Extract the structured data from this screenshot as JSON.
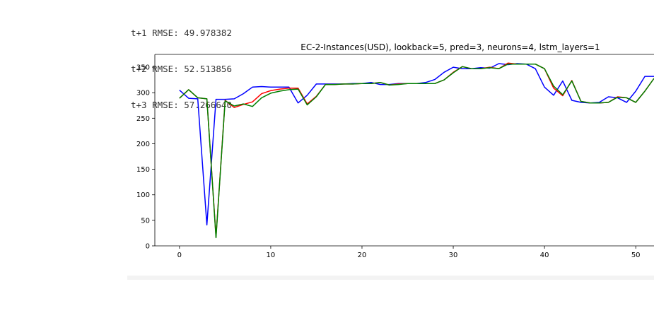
{
  "output_lines": [
    "t+1 RMSE: 49.978382",
    "t+2 RMSE: 52.513856",
    "t+3 RMSE: 57.266640"
  ],
  "colors": {
    "series_1": "#0000ff",
    "series_2": "#ff0000",
    "series_3": "#008000",
    "axis": "#000000"
  },
  "chart_data": {
    "type": "line",
    "title": "EC-2-Instances(USD), lookback=5, pred=3, neurons=4, lstm_layers=1",
    "xlabel": "",
    "ylabel": "",
    "xlim": [
      -2.7,
      52
    ],
    "ylim": [
      0,
      375
    ],
    "xticks": [
      0,
      10,
      20,
      30,
      40,
      50
    ],
    "yticks": [
      0,
      50,
      100,
      150,
      200,
      250,
      300,
      350
    ],
    "grid": false,
    "legend": "none",
    "series": [
      {
        "name": "blue",
        "color": "#0000ff",
        "x": [
          0,
          1,
          2,
          3,
          4,
          5,
          6,
          7,
          8,
          9,
          10,
          11,
          12,
          13,
          14,
          15,
          16,
          17,
          18,
          19,
          20,
          21,
          22,
          23,
          24,
          25,
          26,
          27,
          28,
          29,
          30,
          31,
          32,
          33,
          34,
          35,
          36,
          37,
          38,
          39,
          40,
          41,
          42,
          43,
          44,
          45,
          46,
          47,
          48,
          49,
          50,
          51,
          52
        ],
        "values": [
          305,
          289,
          288,
          41,
          287,
          287,
          288,
          298,
          311,
          312,
          311,
          311,
          311,
          280,
          295,
          317,
          317,
          317,
          317,
          318,
          318,
          320,
          316,
          316,
          318,
          318,
          318,
          320,
          326,
          340,
          350,
          347,
          347,
          349,
          348,
          357,
          355,
          357,
          356,
          347,
          311,
          295,
          323,
          285,
          281,
          280,
          281,
          292,
          290,
          281,
          303,
          332,
          332
        ]
      },
      {
        "name": "red",
        "color": "#ff0000",
        "x": [
          0,
          1,
          2,
          3,
          4,
          5,
          6,
          7,
          8,
          9,
          10,
          11,
          12,
          13,
          14,
          15,
          16,
          17,
          18,
          19,
          20,
          21,
          22,
          23,
          24,
          25,
          26,
          27,
          28,
          29,
          30,
          31,
          32,
          33,
          34,
          35,
          36,
          37,
          38,
          39,
          40,
          41,
          42,
          43,
          44,
          45,
          46,
          47,
          48,
          49,
          50,
          51,
          52
        ],
        "values": [
          289,
          306,
          290,
          288,
          18,
          285,
          271,
          277,
          282,
          298,
          304,
          307,
          309,
          309,
          278,
          293,
          316,
          316,
          317,
          317,
          318,
          318,
          320,
          315,
          317,
          318,
          318,
          318,
          318,
          325,
          340,
          351,
          347,
          347,
          350,
          347,
          358,
          356,
          356,
          356,
          347,
          309,
          294,
          324,
          283,
          280,
          280,
          281,
          292,
          290,
          281,
          303,
          328
        ]
      },
      {
        "name": "green",
        "color": "#008000",
        "x": [
          0,
          1,
          2,
          3,
          4,
          5,
          6,
          7,
          8,
          9,
          10,
          11,
          12,
          13,
          14,
          15,
          16,
          17,
          18,
          19,
          20,
          21,
          22,
          23,
          24,
          25,
          26,
          27,
          28,
          29,
          30,
          31,
          32,
          33,
          34,
          35,
          36,
          37,
          38,
          39,
          40,
          41,
          42,
          43,
          44,
          45,
          46,
          47,
          48,
          49,
          50,
          51,
          52
        ],
        "values": [
          289,
          306,
          290,
          288,
          16,
          284,
          274,
          278,
          273,
          290,
          299,
          303,
          306,
          307,
          276,
          292,
          316,
          316,
          317,
          317,
          318,
          318,
          320,
          315,
          316,
          318,
          318,
          318,
          318,
          325,
          339,
          351,
          347,
          347,
          349,
          347,
          356,
          356,
          356,
          356,
          347,
          313,
          296,
          323,
          283,
          280,
          280,
          281,
          291,
          290,
          281,
          303,
          328
        ]
      }
    ]
  }
}
